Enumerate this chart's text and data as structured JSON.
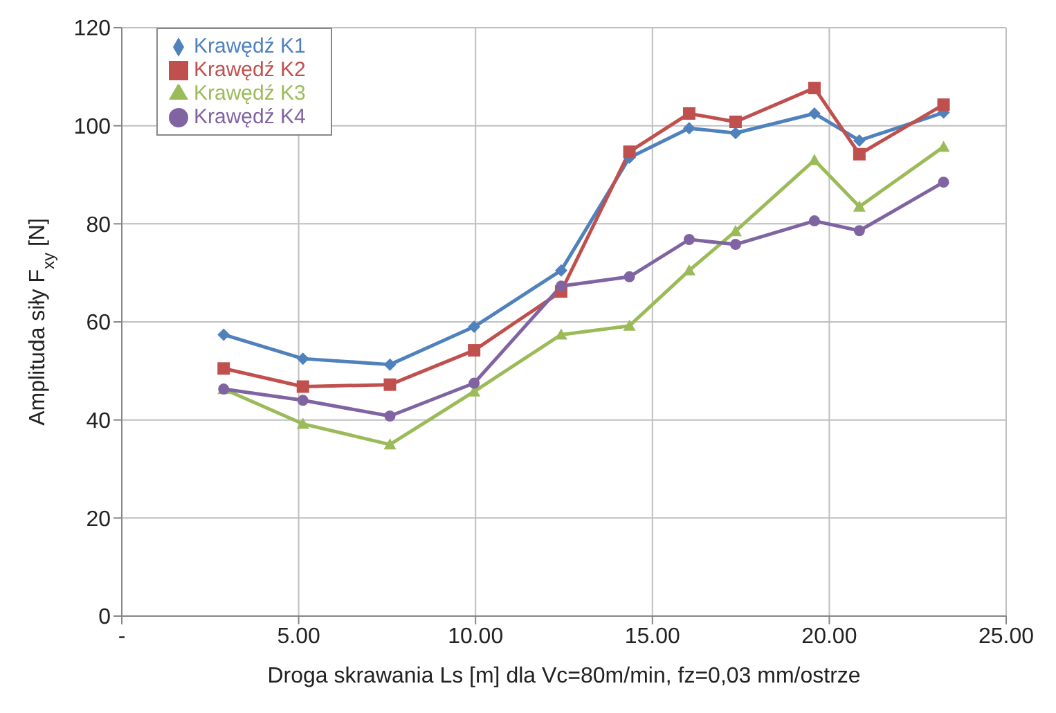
{
  "chart_data": {
    "type": "line",
    "xlabel": "Droga skrawania Ls [m] dla Vc=80m/min, fz=0,03 mm/ostrze",
    "ylabel": "Amplituda siły F$_{xy}$ [N]",
    "x": [
      2.88,
      5.12,
      7.58,
      9.96,
      12.42,
      14.35,
      16.04,
      17.35,
      19.58,
      20.85,
      23.23
    ],
    "series": [
      {
        "name": "Krawędź K1",
        "color": "#4f81bd",
        "marker": "diamond",
        "values": [
          57.4,
          52.5,
          51.3,
          59,
          70.5,
          93.5,
          99.5,
          98.5,
          102.5,
          97,
          102.7
        ]
      },
      {
        "name": "Krawędź K2",
        "color": "#c0504d",
        "marker": "square",
        "values": [
          50.5,
          46.8,
          47.2,
          54.2,
          66.2,
          94.7,
          102.5,
          100.8,
          107.7,
          94.2,
          104.3
        ]
      },
      {
        "name": "Krawędź K3",
        "color": "#9bbb59",
        "marker": "triangle",
        "values": [
          46.3,
          39.2,
          35,
          45.8,
          57.4,
          59.2,
          70.5,
          78.5,
          93,
          83.5,
          95.7
        ]
      },
      {
        "name": "Krawędź K4",
        "color": "#8064a2",
        "marker": "circle",
        "values": [
          46.3,
          44,
          40.8,
          47.5,
          67.3,
          69.2,
          76.8,
          75.8,
          80.6,
          78.6,
          88.5
        ]
      }
    ],
    "xlim": [
      0,
      25
    ],
    "xticks": [
      {
        "value": 0,
        "label": "-"
      },
      {
        "value": 5,
        "label": "5.00"
      },
      {
        "value": 10,
        "label": "10.00"
      },
      {
        "value": 15,
        "label": "15.00"
      },
      {
        "value": 20,
        "label": "20.00"
      },
      {
        "value": 25,
        "label": "25.00"
      }
    ],
    "ylim": [
      0,
      120
    ],
    "yticks": [
      0,
      20,
      40,
      60,
      80,
      100,
      120
    ],
    "grid": true,
    "legend": "top left",
    "line_style": "solid"
  }
}
